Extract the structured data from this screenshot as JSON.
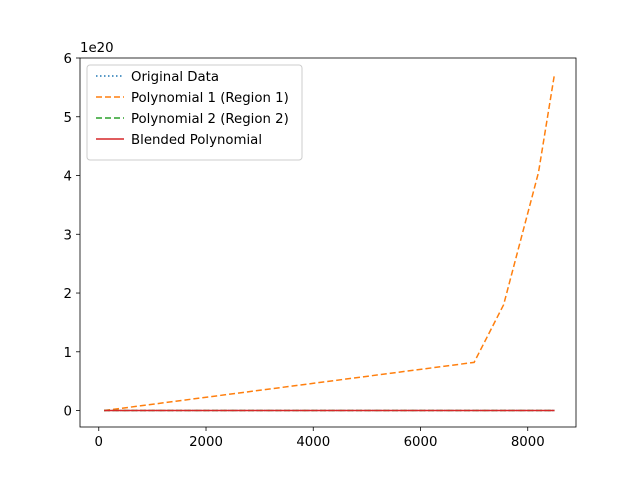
{
  "chart_data": {
    "type": "line",
    "title": "",
    "xlabel": "",
    "ylabel": "",
    "xlim": [
      -350,
      8900
    ],
    "ylim": [
      -0.28,
      6.0
    ],
    "y_scale_offset_text": "1e20",
    "y_scale_factor": 1e+20,
    "grid": false,
    "legend_position": "upper-left",
    "x_ticks": [
      0,
      2000,
      4000,
      6000,
      8000
    ],
    "y_ticks": [
      0,
      1,
      2,
      3,
      4,
      5,
      6
    ],
    "series": [
      {
        "name": "Original Data",
        "color": "#1f77b4",
        "style": "dotted",
        "x": [
          100,
          8500
        ],
        "y": [
          0,
          0
        ]
      },
      {
        "name": "Polynomial 1 (Region 1)",
        "color": "#ff7f0e",
        "style": "dashed",
        "x": [
          100,
          7000,
          7550,
          8200,
          8500
        ],
        "y": [
          0,
          0.82,
          1.8,
          4.05,
          5.73
        ]
      },
      {
        "name": "Polynomial 2 (Region 2)",
        "color": "#2ca02c",
        "style": "dashed",
        "x": [
          100,
          8500
        ],
        "y": [
          0,
          0
        ]
      },
      {
        "name": "Blended Polynomial",
        "color": "#d62728",
        "style": "solid",
        "x": [
          100,
          8500
        ],
        "y": [
          0,
          0
        ]
      }
    ]
  }
}
